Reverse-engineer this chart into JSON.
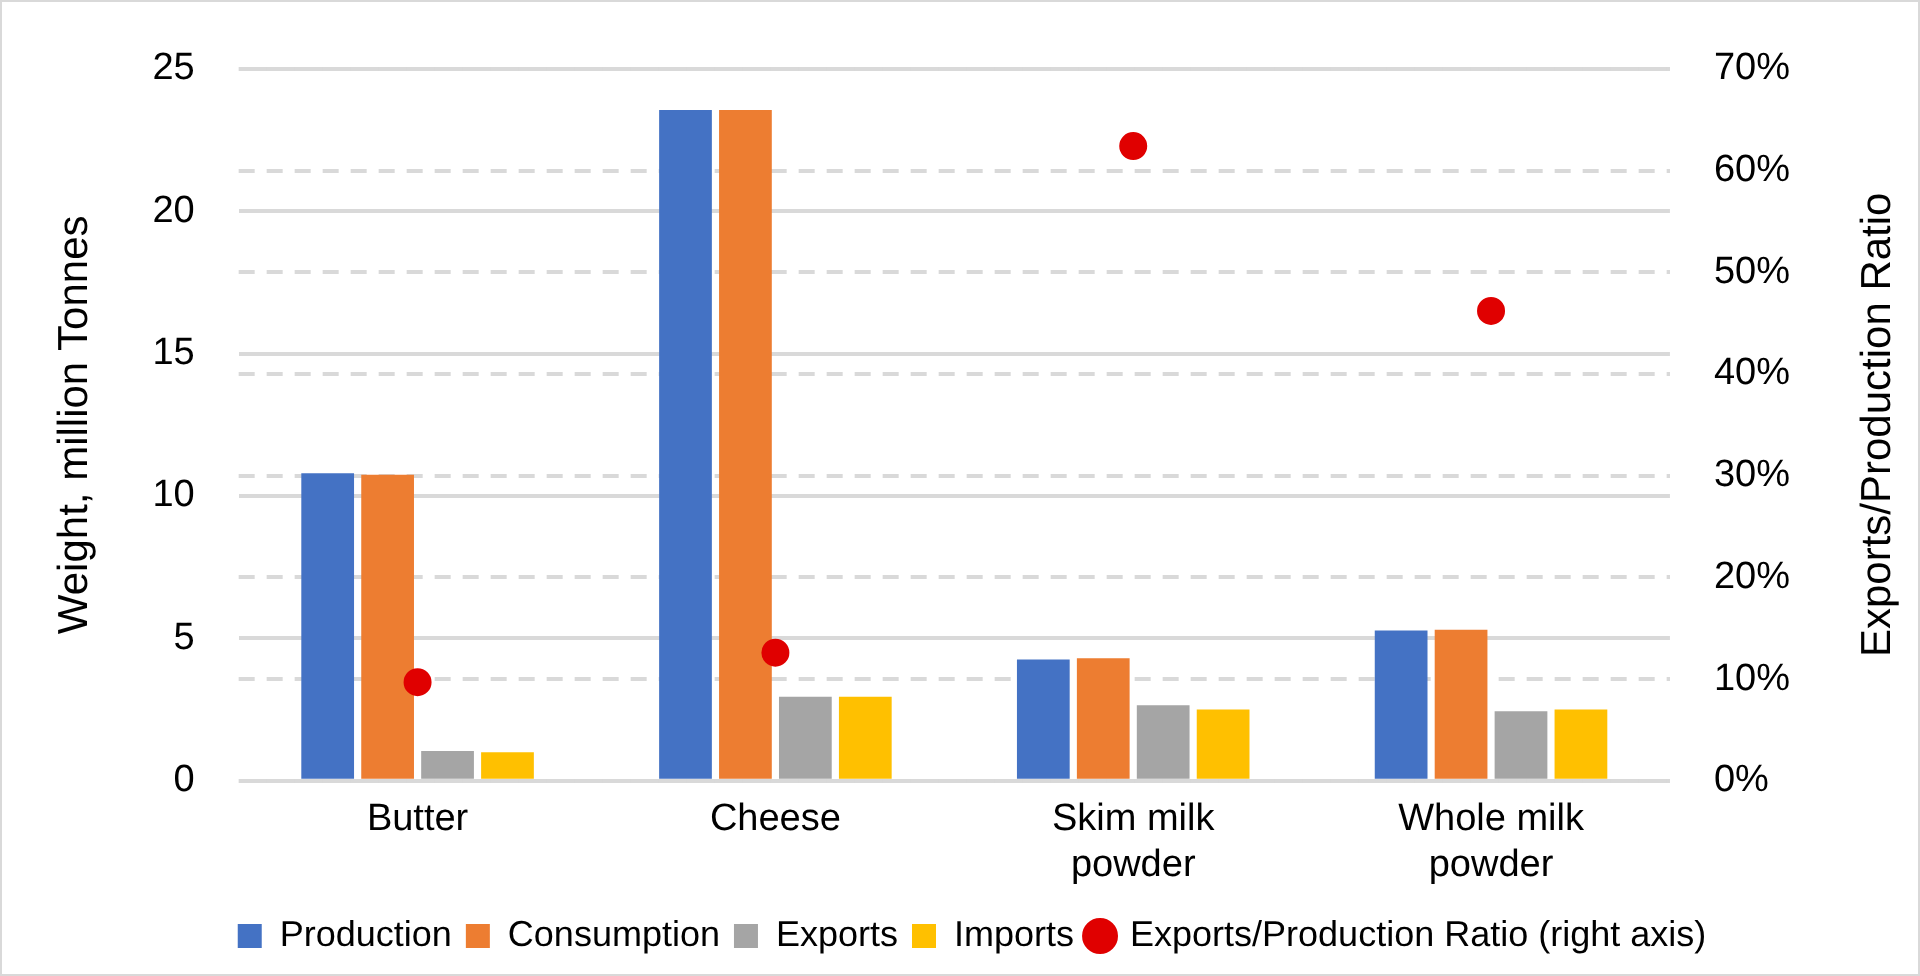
{
  "chart_data": {
    "type": "bar",
    "categories": [
      "Butter",
      "Cheese",
      "Skim milk powder",
      "Whole milk powder"
    ],
    "series": [
      {
        "name": "Production",
        "color": "#4472c4",
        "values": [
          10.8,
          23.55,
          4.26,
          5.28
        ]
      },
      {
        "name": "Consumption",
        "color": "#ed7d31",
        "values": [
          10.75,
          23.55,
          4.3,
          5.3
        ]
      },
      {
        "name": "Exports",
        "color": "#a5a5a5",
        "values": [
          1.05,
          2.95,
          2.65,
          2.44
        ]
      },
      {
        "name": "Imports",
        "color": "#ffc000",
        "values": [
          1.0,
          2.95,
          2.5,
          2.5
        ]
      },
      {
        "name": "Exports/Production Ratio (right axis)",
        "type": "scatter",
        "axis": "y2",
        "color": "#e00000",
        "x": [
          "Butter",
          "Cheese",
          "Skim milk powder",
          "Whole milk powder"
        ],
        "values": [
          9.7,
          12.6,
          62.4,
          46.2
        ]
      }
    ],
    "ylabel": "Weight, million Tonnes",
    "y2label": "Exports/Production Ratio",
    "ylim": [
      0,
      25
    ],
    "yticks": [
      0,
      5,
      10,
      15,
      20,
      25
    ],
    "y2lim": [
      0,
      70
    ],
    "y2ticks": [
      {
        "value": 0,
        "label": "0%"
      },
      {
        "value": 10,
        "label": "10%"
      },
      {
        "value": 20,
        "label": "20%"
      },
      {
        "value": 30,
        "label": "30%"
      },
      {
        "value": 40,
        "label": "40%"
      },
      {
        "value": 50,
        "label": "50%"
      },
      {
        "value": 60,
        "label": "60%"
      },
      {
        "value": 70,
        "label": "70%"
      }
    ],
    "grid": true,
    "legend": "bottom",
    "marker": "circle"
  }
}
